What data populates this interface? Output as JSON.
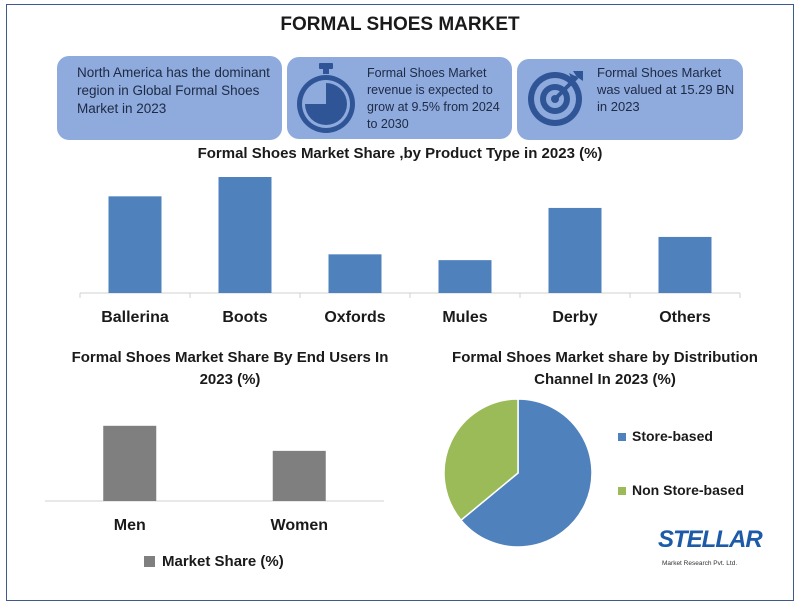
{
  "title": "FORMAL SHOES MARKET",
  "cards": [
    {
      "text": "North America has the dominant region in Global Formal Shoes Market in 2023",
      "icon": "none"
    },
    {
      "text": "Formal Shoes Market revenue is expected to grow at 9.5% from 2024 to 2030",
      "icon": "stopwatch-icon"
    },
    {
      "text": "Formal Shoes Market was valued at 15.29 BN in 2023",
      "icon": "target-icon"
    }
  ],
  "colors": {
    "card_bg": "#8faadc",
    "bar_blue": "#4f81bd",
    "bar_gray": "#7f7f7f",
    "pie_store": "#4f81bd",
    "pie_nonstore": "#9bbb59",
    "border": "#3c5a8a",
    "logo_blue": "#1d5ba8"
  },
  "chart_data": [
    {
      "type": "bar",
      "title": "Formal Shoes Market Share ,by Product Type in 2023 (%)",
      "categories": [
        "Ballerina",
        "Boots",
        "Oxfords",
        "Mules",
        "Derby",
        "Others"
      ],
      "values": [
        25,
        30,
        10,
        8.5,
        22,
        14.5
      ],
      "ylim": [
        0,
        30
      ],
      "grid": false,
      "color": "#4f81bd"
    },
    {
      "type": "bar",
      "title": "Formal Shoes Market Share By End Users In 2023 (%)",
      "categories": [
        "Men",
        "Women"
      ],
      "series": [
        {
          "name": "Market Share (%)",
          "values": [
            60,
            40
          ]
        }
      ],
      "ylim": [
        0,
        75
      ],
      "legend": "bottom",
      "grid": false,
      "color": "#7f7f7f"
    },
    {
      "type": "pie",
      "title": "Formal Shoes Market share by Distribution Channel In 2023 (%)",
      "labels": [
        "Store-based",
        "Non Store-based"
      ],
      "values": [
        64,
        36
      ],
      "colors": [
        "#4f81bd",
        "#9bbb59"
      ],
      "legend": "right"
    }
  ],
  "logo": {
    "text": "STELLAR",
    "subtext": "Market Research Pvt. Ltd."
  }
}
